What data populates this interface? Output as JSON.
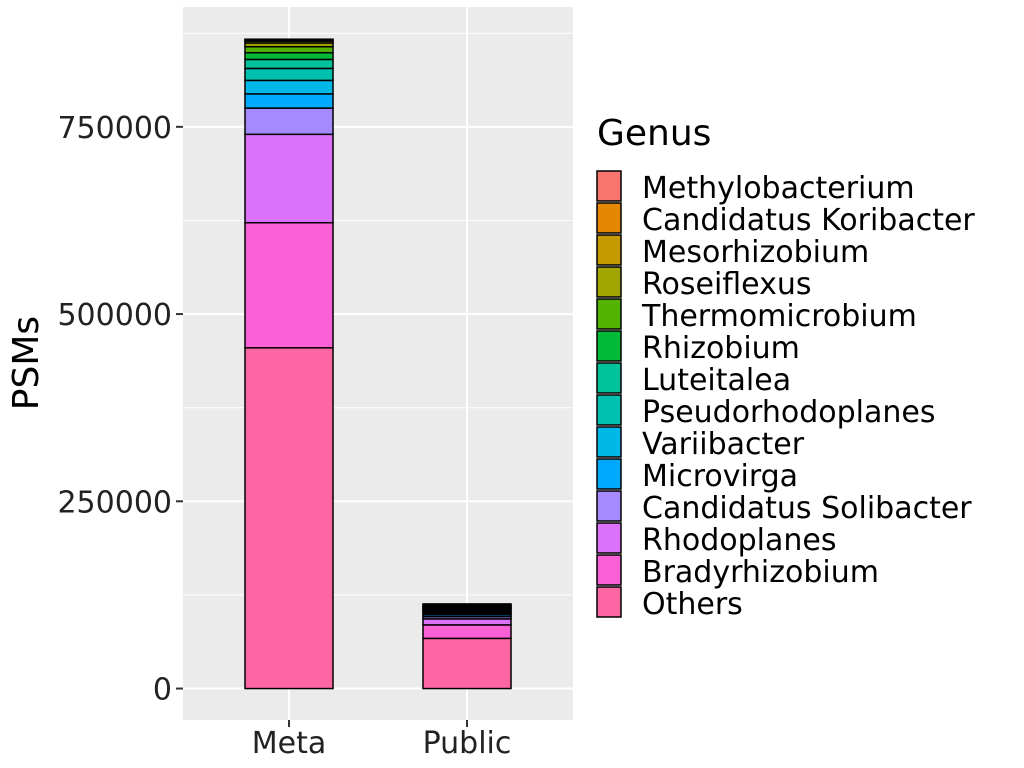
{
  "chart_data": {
    "type": "bar",
    "stacked": true,
    "categories": [
      "Meta",
      "Public"
    ],
    "ylabel": "PSMs",
    "xlabel": "",
    "ylim": [
      -42000,
      910000
    ],
    "y_ticks": [
      0,
      250000,
      500000,
      750000
    ],
    "y_tick_labels": [
      "0",
      "250000",
      "500000",
      "750000"
    ],
    "grid": true,
    "legend": {
      "title": "Genus",
      "position": "right"
    },
    "series": [
      {
        "name": "Others",
        "color": "#FF67A4",
        "values": [
          455000,
          67000
        ]
      },
      {
        "name": "Bradyrhizobium",
        "color": "#FB61D7",
        "values": [
          167000,
          18000
        ]
      },
      {
        "name": "Rhodoplanes",
        "color": "#DB72FB",
        "values": [
          118000,
          8000
        ]
      },
      {
        "name": "Candidatus Solibacter",
        "color": "#A58AFF",
        "values": [
          35000,
          3000
        ]
      },
      {
        "name": "Microvirga",
        "color": "#00A9FF",
        "values": [
          19000,
          2500
        ]
      },
      {
        "name": "Variibacter",
        "color": "#00B8E7",
        "values": [
          18000,
          2000
        ]
      },
      {
        "name": "Pseudorhodoplanes",
        "color": "#00C0AF",
        "values": [
          16000,
          1500
        ]
      },
      {
        "name": "Luteitalea",
        "color": "#00C19A",
        "values": [
          12000,
          2000
        ]
      },
      {
        "name": "Rhizobium",
        "color": "#00BA38",
        "values": [
          9000,
          2000
        ]
      },
      {
        "name": "Thermomicrobium",
        "color": "#53B400",
        "values": [
          8000,
          1000
        ]
      },
      {
        "name": "Roseiflexus",
        "color": "#A3A500",
        "values": [
          5000,
          1000
        ]
      },
      {
        "name": "Mesorhizobium",
        "color": "#C49A00",
        "values": [
          2500,
          2000
        ]
      },
      {
        "name": "Candidatus Koribacter",
        "color": "#E58700",
        "values": [
          1500,
          1500
        ]
      },
      {
        "name": "Methylobacterium",
        "color": "#F8766D",
        "values": [
          1000,
          1500
        ]
      }
    ],
    "legend_order": [
      "Methylobacterium",
      "Candidatus Koribacter",
      "Mesorhizobium",
      "Roseiflexus",
      "Thermomicrobium",
      "Rhizobium",
      "Luteitalea",
      "Pseudorhodoplanes",
      "Variibacter",
      "Microvirga",
      "Candidatus Solibacter",
      "Rhodoplanes",
      "Bradyrhizobium",
      "Others"
    ],
    "colors": {
      "panel_background": "#EBEBEB",
      "grid_major": "#FFFFFF",
      "bar_outline": "#000000"
    }
  }
}
